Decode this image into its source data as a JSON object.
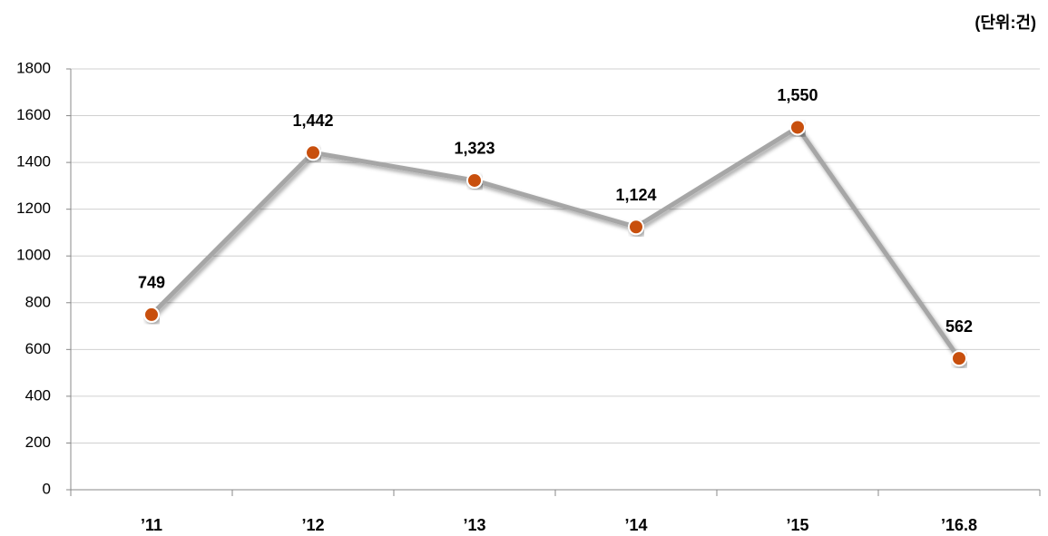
{
  "chart_data": {
    "type": "line",
    "annotation": "(단위:건)",
    "categories": [
      "’11",
      "’12",
      "’13",
      "’14",
      "’15",
      "’16.8"
    ],
    "series": [
      {
        "name": null,
        "color": "#c8500f",
        "line_color": "#a6a6a6",
        "values": [
          749,
          1442,
          1323,
          1124,
          1550,
          562
        ],
        "value_labels": [
          "749",
          "1,442",
          "1,323",
          "1,124",
          "1,550",
          "562"
        ]
      }
    ],
    "ylim": [
      0,
      1800
    ],
    "yticks": [
      0,
      200,
      400,
      600,
      800,
      1000,
      1200,
      1400,
      1600,
      1800
    ],
    "grid": true
  }
}
